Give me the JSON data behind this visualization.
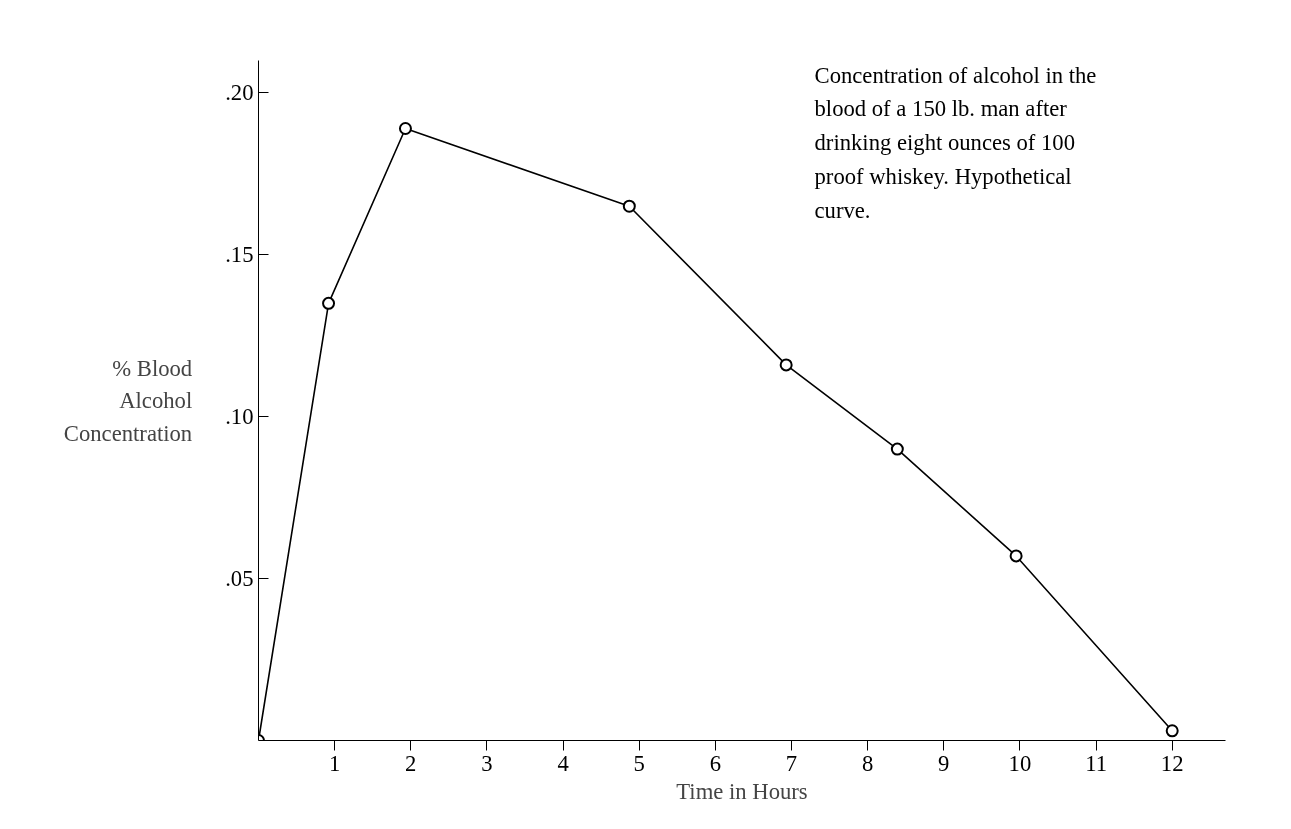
{
  "chart_data": {
    "type": "line",
    "xlabel": "Time in Hours",
    "ylabel": "% Blood Alcohol Concentration",
    "annotations": [
      "Concentration of alcohol in the blood of a 150 lb. man after drinking eight ounces of 100 proof whiskey. Hypothetical curve."
    ],
    "series": [
      {
        "color": "#000000",
        "x": [
          0,
          0.92,
          1.93,
          4.87,
          6.93,
          8.39,
          9.95,
          12.0
        ],
        "values": [
          0,
          0.135,
          0.189,
          0.165,
          0.116,
          0.09,
          0.057,
          0.003
        ]
      }
    ],
    "xlim": [
      0,
      12.7
    ],
    "ylim": [
      0,
      0.21
    ],
    "xticks": [
      1,
      2,
      3,
      4,
      5,
      6,
      7,
      8,
      9,
      10,
      11,
      12
    ],
    "yticks": [
      {
        "value": 0.05,
        "label": ".05"
      },
      {
        "value": 0.1,
        "label": ".10"
      },
      {
        "value": 0.15,
        "label": ".15"
      },
      {
        "value": 0.2,
        "label": ".20"
      }
    ],
    "grid": false,
    "marker": "circle",
    "line_style": "solid"
  }
}
